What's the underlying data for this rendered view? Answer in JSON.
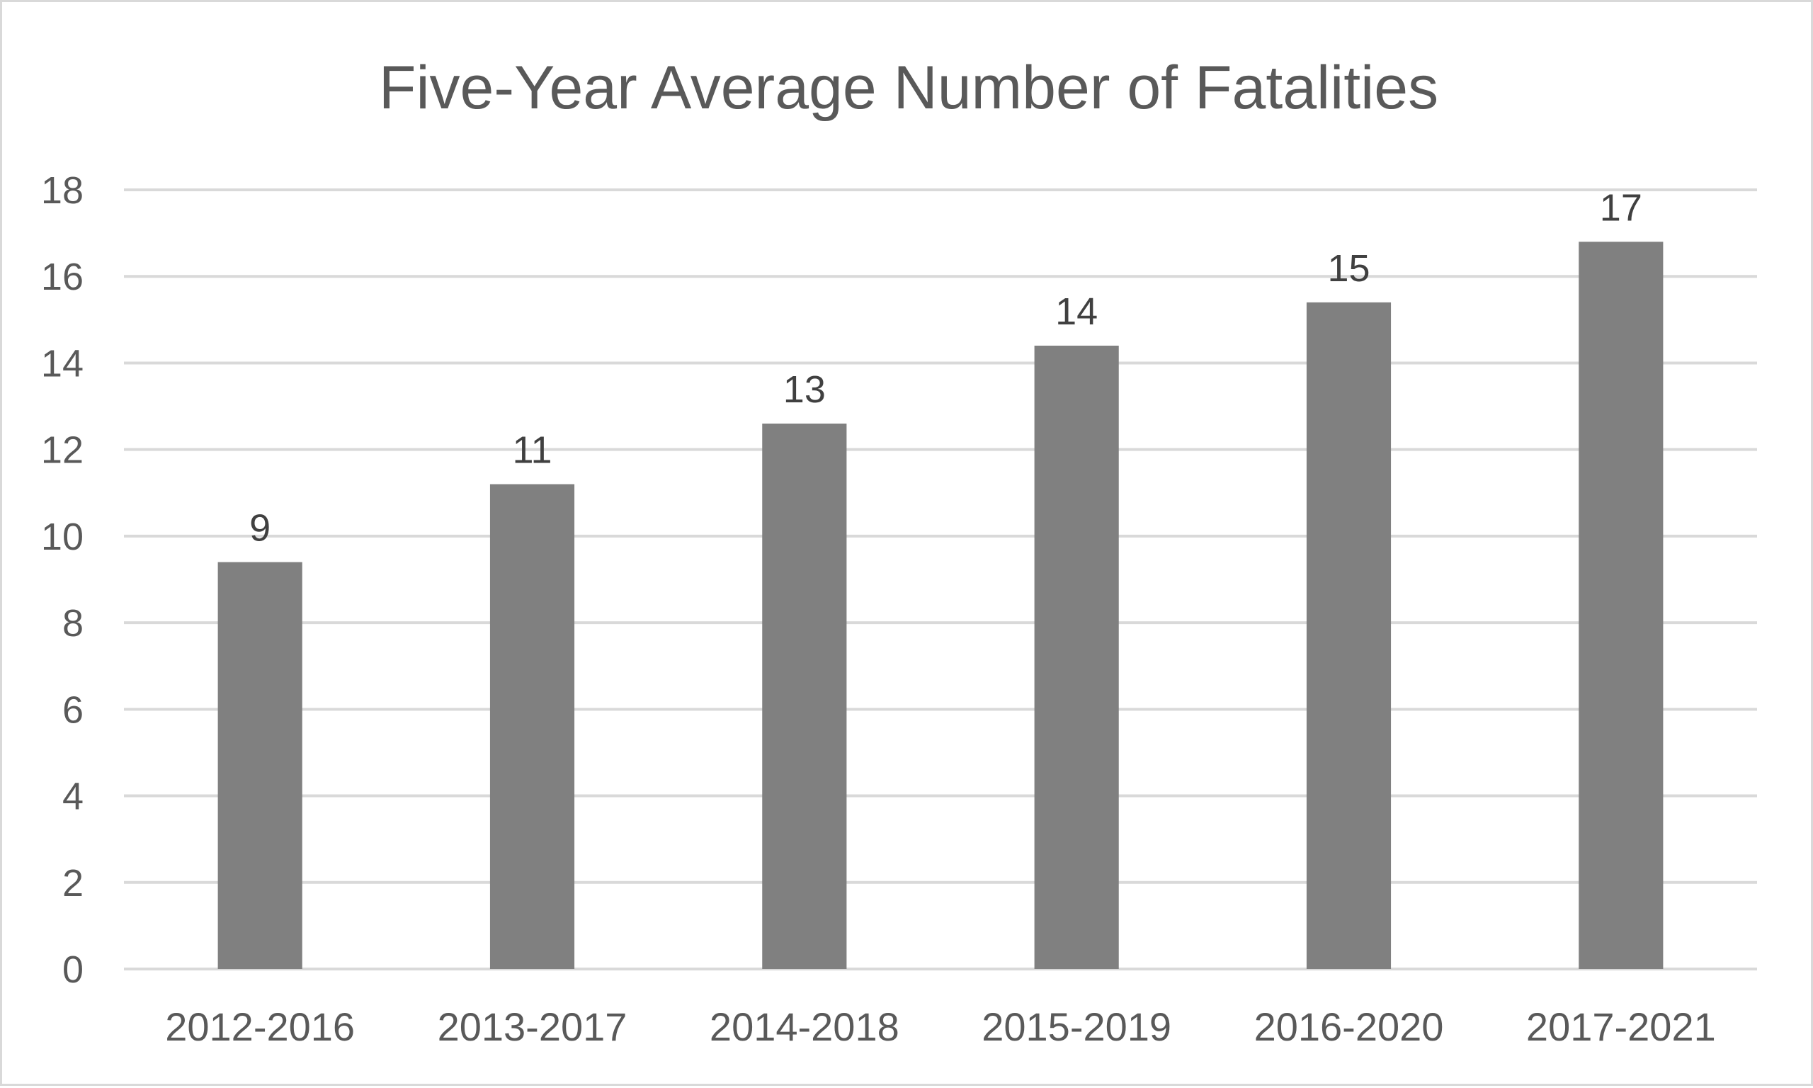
{
  "chart_data": {
    "type": "bar",
    "title": "Five-Year Average Number of Fatalities",
    "categories": [
      "2012-2016",
      "2013-2017",
      "2014-2018",
      "2015-2019",
      "2016-2020",
      "2017-2021"
    ],
    "values": [
      9.4,
      11.2,
      12.6,
      14.4,
      15.4,
      16.8
    ],
    "data_labels": [
      "9",
      "11",
      "13",
      "14",
      "15",
      "17"
    ],
    "ylim": [
      0,
      18
    ],
    "yticks": [
      0,
      2,
      4,
      6,
      8,
      10,
      12,
      14,
      16,
      18
    ],
    "grid": true,
    "legend": "none",
    "bar_color": "#808080",
    "gridline_color": "#d9d9d9",
    "text_color": "#595959"
  }
}
